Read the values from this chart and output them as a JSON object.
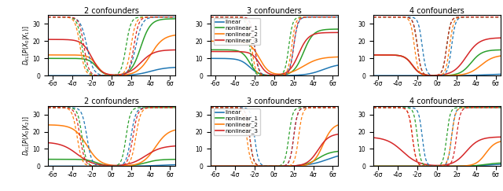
{
  "titles": [
    "2 confounders",
    "3 confounders",
    "4 confounders"
  ],
  "ylabel_top": "$D_{KL}[P(X_0|X_1)]$",
  "ylabel_bot": "$D_{KL}[P(X_0|X_2)]$",
  "colors": [
    "#1f77b4",
    "#2ca02c",
    "#ff7f0e",
    "#d62728"
  ],
  "labels": [
    "linear",
    "nonlinear_1",
    "nonlinear_2",
    "nonlinear_3"
  ],
  "xlim": [
    -6.5,
    6.5
  ],
  "ylim": [
    0,
    35
  ],
  "yticks": [
    0,
    10,
    20,
    30
  ],
  "xtick_vals": [
    -6,
    -4,
    -2,
    0,
    2,
    4,
    6
  ],
  "xtick_labels": [
    "-6σ",
    "-4σ",
    "-2σ",
    "0σ",
    "2σ",
    "4σ",
    "6σ"
  ]
}
